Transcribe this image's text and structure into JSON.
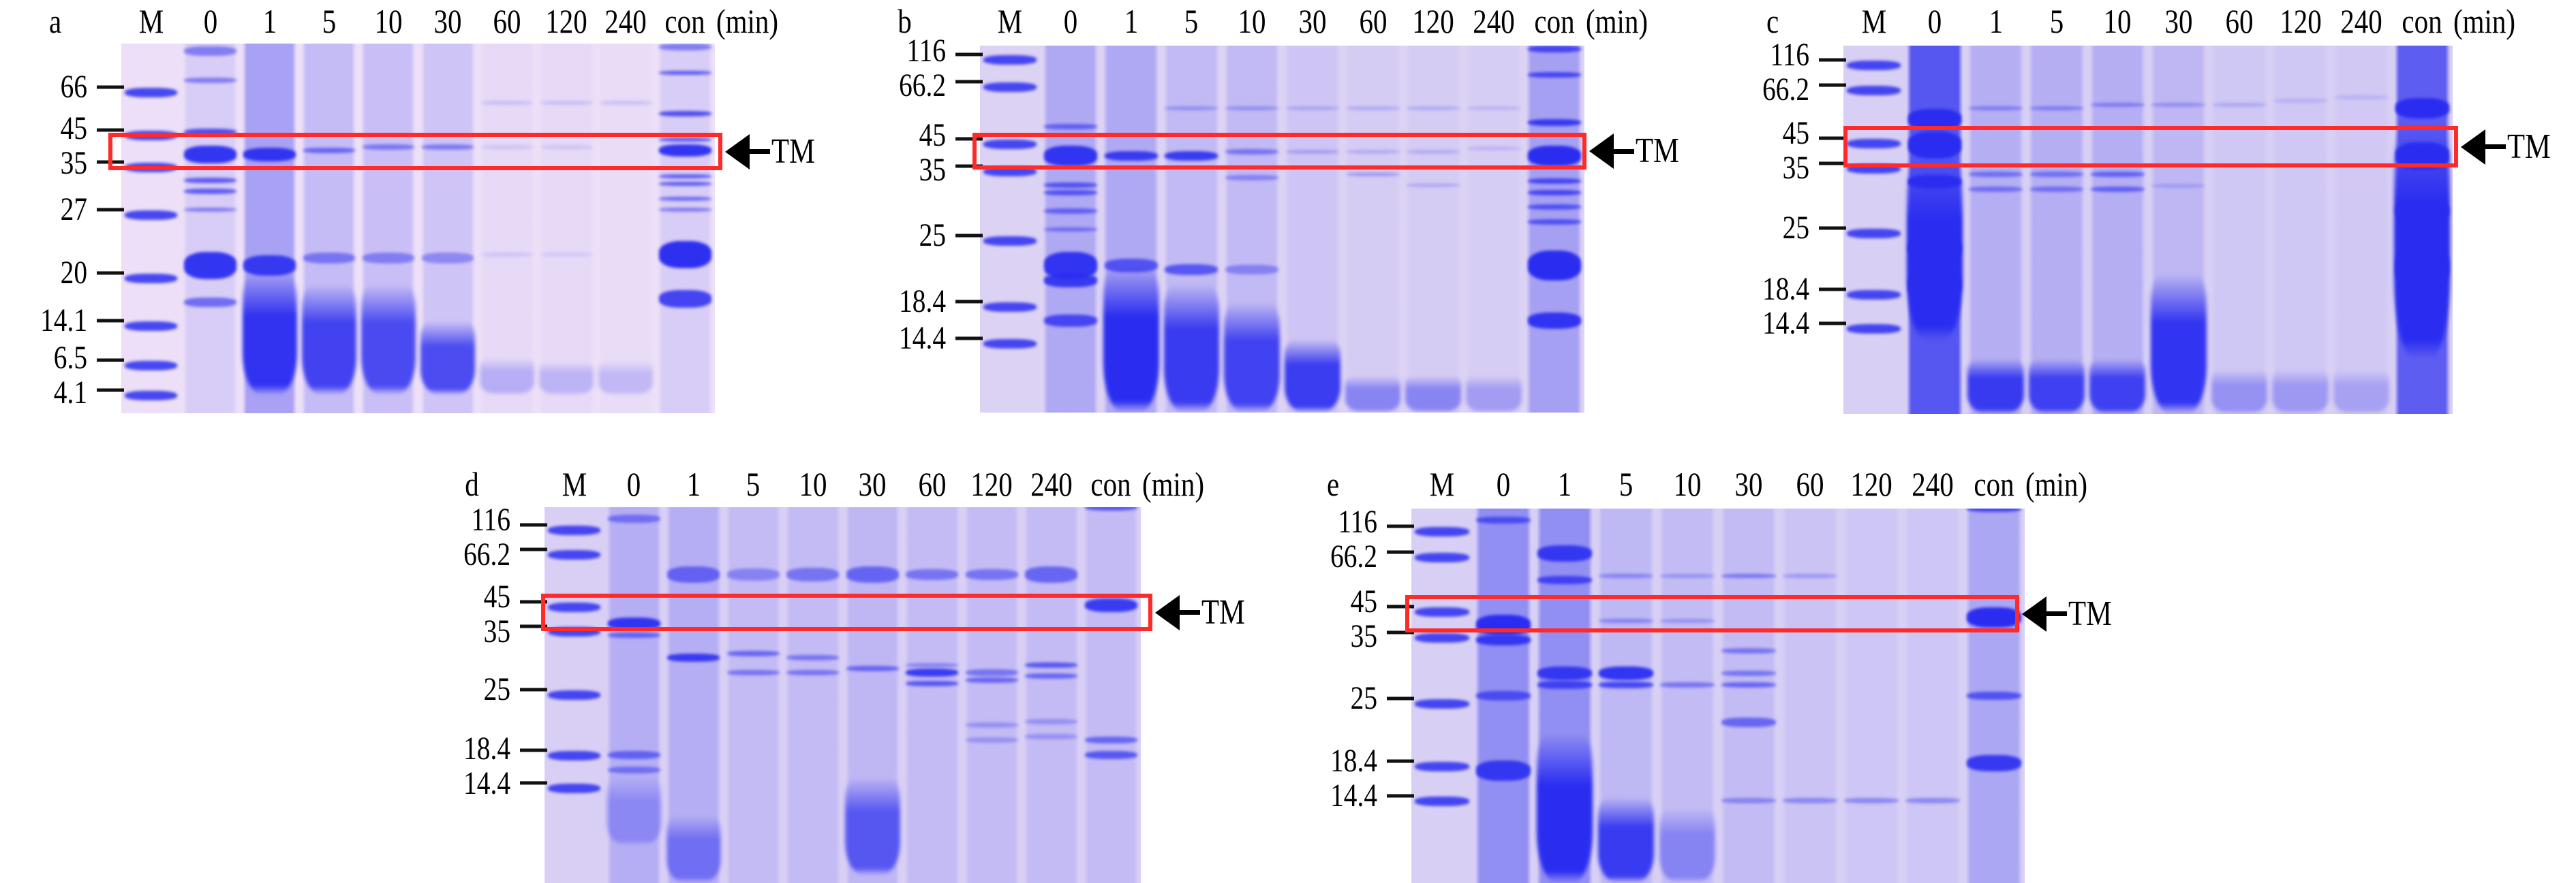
{
  "figure": {
    "unit_label": "(min)",
    "annotation": "TM",
    "colors": {
      "stain": "#2a2df0",
      "highlight_box": "#ff2a2a",
      "gel_background": "#dcd2f4"
    },
    "panels": [
      {
        "id": "a",
        "label": "a",
        "lanes": [
          "M",
          "0",
          "1",
          "5",
          "10",
          "30",
          "60",
          "120",
          "240",
          "con"
        ],
        "markers": [
          "66",
          "45",
          "35",
          "27",
          "20",
          "14.1",
          "6.5",
          "4.1"
        ]
      },
      {
        "id": "b",
        "label": "b",
        "lanes": [
          "M",
          "0",
          "1",
          "5",
          "10",
          "30",
          "60",
          "120",
          "240",
          "con"
        ],
        "markers": [
          "116",
          "66.2",
          "45",
          "35",
          "25",
          "18.4",
          "14.4"
        ]
      },
      {
        "id": "c",
        "label": "c",
        "lanes": [
          "M",
          "0",
          "1",
          "5",
          "10",
          "30",
          "60",
          "120",
          "240",
          "con"
        ],
        "markers": [
          "116",
          "66.2",
          "45",
          "35",
          "25",
          "18.4",
          "14.4"
        ]
      },
      {
        "id": "d",
        "label": "d",
        "lanes": [
          "M",
          "0",
          "1",
          "5",
          "10",
          "30",
          "60",
          "120",
          "240",
          "con"
        ],
        "markers": [
          "116",
          "66.2",
          "45",
          "35",
          "25",
          "18.4",
          "14.4"
        ]
      },
      {
        "id": "e",
        "label": "e",
        "lanes": [
          "M",
          "0",
          "1",
          "5",
          "10",
          "30",
          "60",
          "120",
          "240",
          "con"
        ],
        "markers": [
          "116",
          "66.2",
          "45",
          "35",
          "25",
          "18.4",
          "14.4"
        ]
      }
    ]
  }
}
